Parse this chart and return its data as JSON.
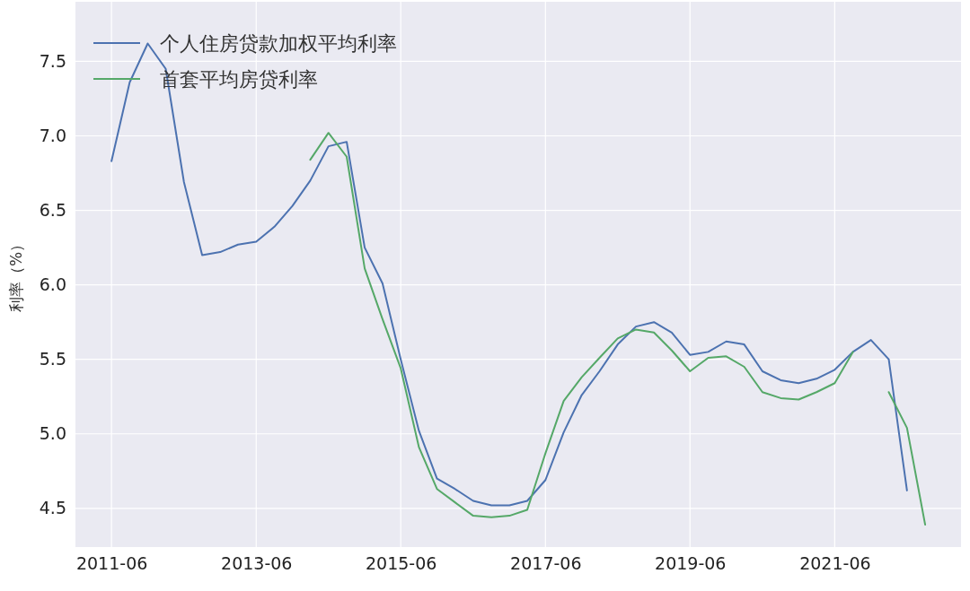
{
  "chart_data": {
    "type": "line",
    "ylabel": "利率（%）",
    "x": [
      "2011-06",
      "2011-09",
      "2011-12",
      "2012-03",
      "2012-06",
      "2012-09",
      "2012-12",
      "2013-03",
      "2013-06",
      "2013-09",
      "2013-12",
      "2014-03",
      "2014-06",
      "2014-09",
      "2014-12",
      "2015-03",
      "2015-06",
      "2015-09",
      "2015-12",
      "2016-03",
      "2016-06",
      "2016-09",
      "2016-12",
      "2017-03",
      "2017-06",
      "2017-09",
      "2017-12",
      "2018-03",
      "2018-06",
      "2018-09",
      "2018-12",
      "2019-03",
      "2019-06",
      "2019-09",
      "2019-12",
      "2020-03",
      "2020-06",
      "2020-09",
      "2020-12",
      "2021-03",
      "2021-06",
      "2021-09",
      "2021-12",
      "2022-03",
      "2022-06",
      "2022-09"
    ],
    "series": [
      {
        "name": "个人住房贷款加权平均利率",
        "color": "#4c72b0",
        "values": [
          6.83,
          7.36,
          7.62,
          7.45,
          6.69,
          6.2,
          6.22,
          6.27,
          6.29,
          6.39,
          6.53,
          6.7,
          6.93,
          6.96,
          6.25,
          6.01,
          5.5,
          5.02,
          4.7,
          4.63,
          4.55,
          4.52,
          4.52,
          4.55,
          4.69,
          5.01,
          5.26,
          5.42,
          5.6,
          5.72,
          5.75,
          5.68,
          5.53,
          5.55,
          5.62,
          5.6,
          5.42,
          5.36,
          5.34,
          5.37,
          5.43,
          5.55,
          5.63,
          5.5,
          4.62,
          null
        ]
      },
      {
        "name": "首套平均房贷利率",
        "color": "#55a868",
        "values": [
          null,
          null,
          null,
          null,
          null,
          null,
          null,
          null,
          null,
          null,
          null,
          6.84,
          7.02,
          6.86,
          6.11,
          5.77,
          5.44,
          4.91,
          4.63,
          4.54,
          4.45,
          4.44,
          4.45,
          4.49,
          4.87,
          5.22,
          5.38,
          5.51,
          5.64,
          5.7,
          5.68,
          5.56,
          5.42,
          5.51,
          5.52,
          5.45,
          5.28,
          5.24,
          5.23,
          5.28,
          5.34,
          5.55,
          null,
          5.28,
          5.04,
          4.39
        ]
      }
    ],
    "xlim": [
      "2010-12",
      "2023-03"
    ],
    "xticks": [
      "2011-06",
      "2013-06",
      "2015-06",
      "2017-06",
      "2019-06",
      "2021-06"
    ],
    "ylim": [
      4.24,
      7.9
    ],
    "yticks": [
      4.5,
      {
        "value": 5,
        "label": "5.0"
      },
      5.5,
      {
        "value": 6,
        "label": "6.0"
      },
      6.5,
      {
        "value": 7,
        "label": "7.0"
      },
      7.5
    ],
    "grid": true,
    "legend": "top left",
    "line_style": "solid",
    "marker": "none"
  }
}
